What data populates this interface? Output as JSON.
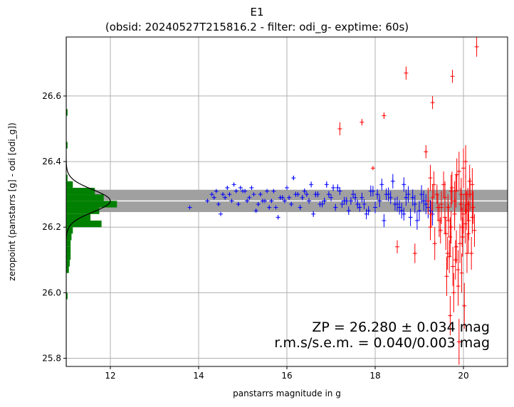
{
  "chart_data": {
    "type": "scatter",
    "title": "E1",
    "subtitle": "(obsid: 20240527T215816.2 - filter: odi_g- exptime: 60s)",
    "xlabel": "panstarrs magnitude in g",
    "ylabel": "zeropoint (panstarrs [g] - odi [odi_g])",
    "xlim": [
      11.0,
      21.0
    ],
    "ylim": [
      25.775,
      26.78
    ],
    "xticks": [
      "12",
      "14",
      "16",
      "18",
      "20"
    ],
    "yticks": [
      "25.8",
      "26.0",
      "26.2",
      "26.4",
      "26.6"
    ],
    "grid": true,
    "zp_line": 26.28,
    "zp_band": [
      26.246,
      26.314
    ],
    "annotation_zp": "ZP = 26.280 ± 0.034 mag",
    "annotation_rms": "r.m.s/s.e.m. = 0.040/0.003 mag",
    "colors": {
      "used": "#0000ff",
      "rejected": "#ff0000",
      "histogram": "#008000",
      "band": "#a0a0a0",
      "zp_line": "#ffffff",
      "gauss": "#000000"
    },
    "histogram": {
      "bin_edges": [
        25.96,
        25.98,
        26.0,
        26.02,
        26.04,
        26.06,
        26.08,
        26.1,
        26.12,
        26.14,
        26.16,
        26.18,
        26.2,
        26.22,
        26.24,
        26.26,
        26.28,
        26.3,
        26.32,
        26.34,
        26.36,
        26.38,
        26.4,
        26.42,
        26.44,
        26.46,
        26.48,
        26.5,
        26.52,
        26.54,
        26.56
      ],
      "counts_x": [
        11.0,
        11.03,
        11.0,
        11.0,
        11.0,
        11.06,
        11.08,
        11.1,
        11.1,
        11.1,
        11.12,
        11.15,
        11.8,
        11.55,
        11.75,
        12.15,
        11.85,
        11.65,
        11.15,
        11.03,
        11.0,
        11.0,
        11.0,
        11.0,
        11.03,
        11.0,
        11.0,
        11.0,
        11.0,
        11.03
      ]
    },
    "gaussian": {
      "mean": 26.28,
      "sigma": 0.034,
      "peak_x": 12.0
    },
    "series": [
      {
        "name": "used",
        "x": [
          13.8,
          14.2,
          14.3,
          14.4,
          14.5,
          14.6,
          14.7,
          14.8,
          14.9,
          15.0,
          15.1,
          15.2,
          15.3,
          15.4,
          15.5,
          15.6,
          15.7,
          15.8,
          15.9,
          16.0,
          16.1,
          16.2,
          16.3,
          16.4,
          16.5,
          16.6,
          16.7,
          16.8,
          16.9,
          17.0,
          17.1,
          17.2,
          17.3,
          17.4,
          17.5,
          17.6,
          17.7,
          17.8,
          17.9,
          18.0,
          18.1,
          18.2,
          18.3,
          18.4,
          18.5,
          18.6,
          18.7,
          18.8,
          18.9,
          19.0,
          19.1,
          19.2,
          19.3,
          14.35,
          14.55,
          14.75,
          14.95,
          15.15,
          15.35,
          15.55,
          15.75,
          15.95,
          16.15,
          16.35,
          16.55,
          16.75,
          16.95,
          17.15,
          17.35,
          17.55,
          17.75,
          17.95,
          18.15,
          18.35,
          18.55,
          18.75,
          18.95,
          19.15,
          14.45,
          14.85,
          15.25,
          15.65,
          16.05,
          16.45,
          16.85,
          17.25,
          17.65,
          18.05,
          18.45,
          18.85,
          14.65,
          15.45,
          16.25,
          17.05,
          17.85,
          18.65,
          19.05,
          15.05,
          15.85,
          16.65,
          17.45,
          18.25,
          18.65,
          19.25
        ],
        "y": [
          26.26,
          26.28,
          26.3,
          26.31,
          26.24,
          26.29,
          26.3,
          26.33,
          26.27,
          26.31,
          26.28,
          26.32,
          26.25,
          26.3,
          26.28,
          26.26,
          26.31,
          26.23,
          26.29,
          26.32,
          26.27,
          26.3,
          26.26,
          26.31,
          26.28,
          26.24,
          26.3,
          26.27,
          26.33,
          26.29,
          26.26,
          26.31,
          26.28,
          26.25,
          26.3,
          26.27,
          26.29,
          26.24,
          26.31,
          26.26,
          26.28,
          26.22,
          26.3,
          26.34,
          26.27,
          26.25,
          26.29,
          26.23,
          26.27,
          26.25,
          26.28,
          26.26,
          26.24,
          26.29,
          26.3,
          26.28,
          26.32,
          26.29,
          26.27,
          26.31,
          26.26,
          26.28,
          26.35,
          26.29,
          26.33,
          26.27,
          26.3,
          26.32,
          26.28,
          26.29,
          26.27,
          26.31,
          26.33,
          26.29,
          26.26,
          26.3,
          26.22,
          26.27,
          26.27,
          26.31,
          26.3,
          26.28,
          26.29,
          26.3,
          26.28,
          26.27,
          26.26,
          26.3,
          26.27,
          26.29,
          26.32,
          26.28,
          26.3,
          26.32,
          26.25,
          26.33,
          26.3,
          26.31,
          26.29,
          26.3,
          26.28,
          26.3,
          26.24,
          26.25
        ],
        "yerr": [
          0.004,
          0.004,
          0.004,
          0.004,
          0.004,
          0.005,
          0.005,
          0.005,
          0.005,
          0.005,
          0.005,
          0.005,
          0.006,
          0.006,
          0.006,
          0.006,
          0.006,
          0.007,
          0.007,
          0.007,
          0.007,
          0.008,
          0.008,
          0.008,
          0.009,
          0.009,
          0.009,
          0.01,
          0.01,
          0.011,
          0.011,
          0.012,
          0.012,
          0.013,
          0.013,
          0.014,
          0.015,
          0.016,
          0.017,
          0.018,
          0.019,
          0.02,
          0.021,
          0.022,
          0.023,
          0.024,
          0.025,
          0.027,
          0.028,
          0.03,
          0.031,
          0.033,
          0.035,
          0.004,
          0.004,
          0.005,
          0.005,
          0.005,
          0.006,
          0.006,
          0.006,
          0.007,
          0.007,
          0.008,
          0.009,
          0.009,
          0.01,
          0.011,
          0.012,
          0.013,
          0.015,
          0.016,
          0.018,
          0.02,
          0.022,
          0.025,
          0.028,
          0.031,
          0.004,
          0.005,
          0.005,
          0.006,
          0.007,
          0.008,
          0.01,
          0.011,
          0.013,
          0.016,
          0.02,
          0.025,
          0.005,
          0.006,
          0.007,
          0.01,
          0.014,
          0.022,
          0.028,
          0.005,
          0.007,
          0.009,
          0.012,
          0.018,
          0.02,
          0.033
        ]
      },
      {
        "name": "rejected",
        "x": [
          17.2,
          17.7,
          17.95,
          18.2,
          18.5,
          18.7,
          18.9,
          19.15,
          19.25,
          19.3,
          19.35,
          19.4,
          19.45,
          19.5,
          19.55,
          19.6,
          19.62,
          19.65,
          19.68,
          19.7,
          19.72,
          19.75,
          19.78,
          19.8,
          19.82,
          19.85,
          19.88,
          19.9,
          19.92,
          19.95,
          19.98,
          20.0,
          20.02,
          20.05,
          20.08,
          20.1,
          20.12,
          20.15,
          20.2,
          20.25,
          20.3,
          19.2,
          19.27,
          19.33,
          19.42,
          19.48,
          19.58,
          19.66,
          19.74,
          19.84,
          19.94,
          20.04,
          20.14,
          20.22,
          19.3,
          19.58,
          19.83,
          19.97,
          20.07,
          20.2,
          19.76,
          19.9,
          20.05,
          19.64,
          19.8,
          19.96,
          20.11,
          19.25,
          19.5,
          19.7,
          20.0,
          19.88,
          20.18,
          19.72
        ],
        "y": [
          26.5,
          26.52,
          26.38,
          26.54,
          26.14,
          26.67,
          26.12,
          26.43,
          26.2,
          26.58,
          26.15,
          26.3,
          26.22,
          26.27,
          26.33,
          26.18,
          26.05,
          26.26,
          26.11,
          25.93,
          26.2,
          26.66,
          26.0,
          26.24,
          26.1,
          26.36,
          26.07,
          25.85,
          26.15,
          26.3,
          26.17,
          26.24,
          25.96,
          26.4,
          26.12,
          26.27,
          26.22,
          26.3,
          26.23,
          26.19,
          26.75,
          26.28,
          26.24,
          26.33,
          26.26,
          26.19,
          26.29,
          26.22,
          26.32,
          26.14,
          26.27,
          26.21,
          26.34,
          26.26,
          26.29,
          26.23,
          26.31,
          26.2,
          26.25,
          26.33,
          26.08,
          26.37,
          26.3,
          26.12,
          26.28,
          26.06,
          26.18,
          26.35,
          26.26,
          26.17,
          26.38,
          26.02,
          26.12,
          26.31
        ],
        "yerr": [
          0.02,
          0.01,
          0.005,
          0.01,
          0.02,
          0.02,
          0.03,
          0.02,
          0.04,
          0.02,
          0.05,
          0.03,
          0.05,
          0.03,
          0.04,
          0.05,
          0.06,
          0.04,
          0.05,
          0.06,
          0.05,
          0.02,
          0.06,
          0.05,
          0.06,
          0.05,
          0.06,
          0.07,
          0.06,
          0.05,
          0.06,
          0.06,
          0.07,
          0.05,
          0.06,
          0.05,
          0.06,
          0.05,
          0.05,
          0.05,
          0.03,
          0.04,
          0.04,
          0.04,
          0.04,
          0.04,
          0.05,
          0.05,
          0.05,
          0.05,
          0.05,
          0.06,
          0.05,
          0.05,
          0.04,
          0.05,
          0.05,
          0.06,
          0.06,
          0.05,
          0.06,
          0.06,
          0.06,
          0.05,
          0.06,
          0.06,
          0.06,
          0.04,
          0.05,
          0.06,
          0.06,
          0.06,
          0.05,
          0.05
        ]
      }
    ]
  }
}
